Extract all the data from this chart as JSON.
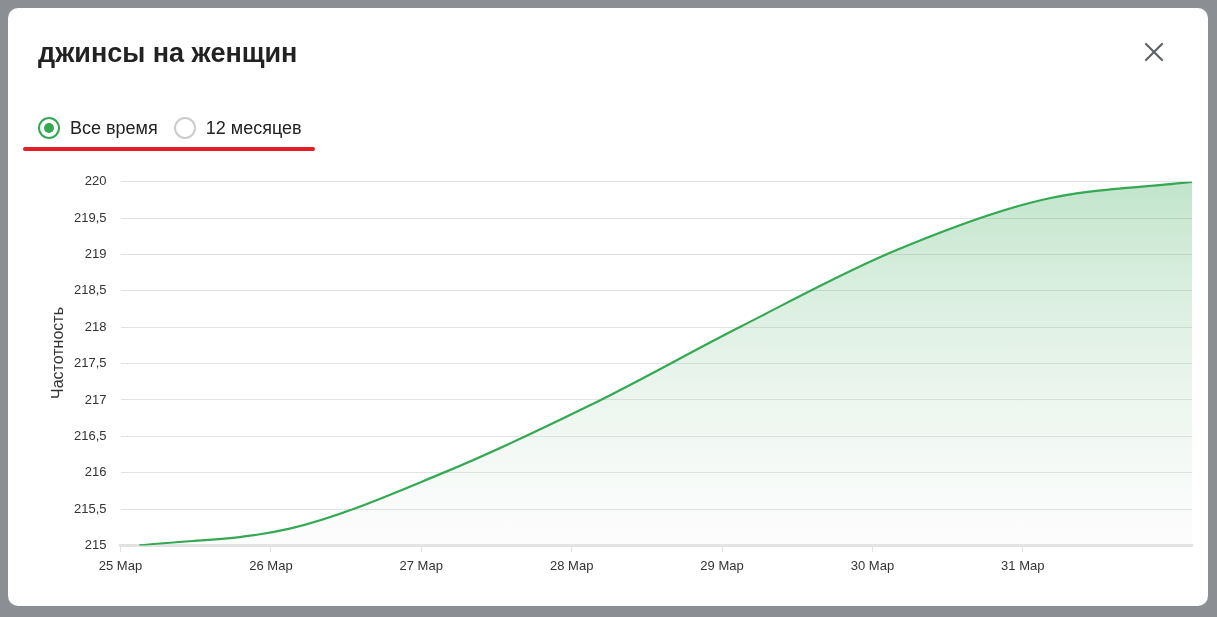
{
  "chart_data": {
    "type": "area",
    "title": "джинсы на женщин",
    "ylabel": "Частотность",
    "annotations": [
      "Все время",
      "12 месяцев"
    ],
    "x": [
      "--03-25T03:00",
      "--03-26T03:00",
      "--03-27T03:00",
      "--03-28T03:00",
      "--03-29T03:00",
      "--03-30T03:00",
      "--03-31T03:00",
      "--04-01T03:00"
    ],
    "series": [
      {
        "color": "#34a853",
        "values": [
          215,
          215.23,
          215.98,
          216.93,
          218.01,
          219.03,
          219.75,
          220
        ]
      }
    ],
    "xlim": [
      "--03-25",
      "--04-01T03:00"
    ],
    "xticks": [
      {
        "value": "--03-25",
        "label": "25 Мар"
      },
      {
        "value": "--03-26",
        "label": "26 Мар"
      },
      {
        "value": "--03-27",
        "label": "27 Мар"
      },
      {
        "value": "--03-28",
        "label": "28 Мар"
      },
      {
        "value": "--03-29",
        "label": "29 Мар"
      },
      {
        "value": "--03-30",
        "label": "30 Мар"
      },
      {
        "value": "--03-31",
        "label": "31 Мар"
      }
    ],
    "ylim": [
      215,
      220
    ],
    "yticks": [
      215,
      {
        "value": 215.5,
        "label": "215,5"
      },
      216,
      {
        "value": 216.5,
        "label": "216,5"
      },
      217,
      {
        "value": 217.5,
        "label": "217,5"
      },
      218,
      {
        "value": 218.5,
        "label": "218,5"
      },
      219,
      {
        "value": 219.5,
        "label": "219,5"
      },
      220
    ],
    "grid": "y",
    "legend": false,
    "marker": "none",
    "line_style": "solid"
  }
}
